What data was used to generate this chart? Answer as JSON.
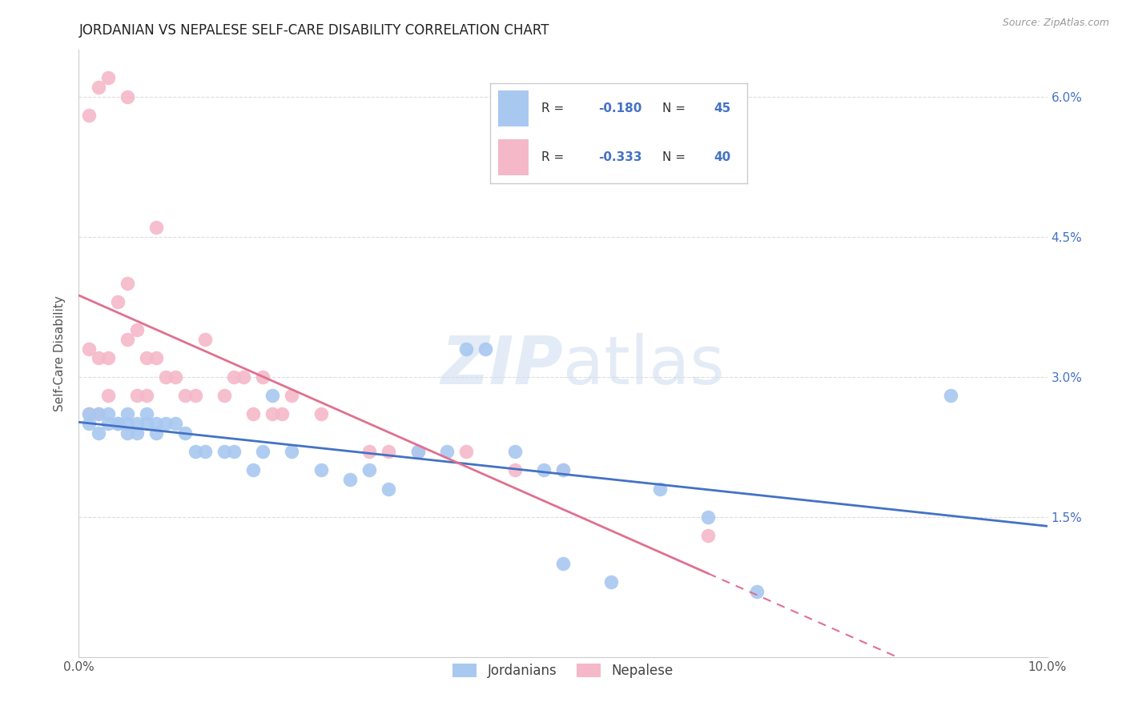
{
  "title": "JORDANIAN VS NEPALESE SELF-CARE DISABILITY CORRELATION CHART",
  "source": "Source: ZipAtlas.com",
  "ylabel": "Self-Care Disability",
  "xlim": [
    0.0,
    0.1
  ],
  "ylim": [
    0.0,
    0.065
  ],
  "blue_R": -0.18,
  "blue_N": 45,
  "pink_R": -0.333,
  "pink_N": 40,
  "blue_color": "#a8c8f0",
  "pink_color": "#f5b8c8",
  "blue_line_color": "#4472c4",
  "pink_line_color": "#e07090",
  "grid_color": "#dddddd",
  "legend_jordanians": "Jordanians",
  "legend_nepalese": "Nepalese",
  "blue_scatter_x": [
    0.001,
    0.001,
    0.002,
    0.002,
    0.003,
    0.003,
    0.004,
    0.004,
    0.005,
    0.005,
    0.005,
    0.006,
    0.006,
    0.007,
    0.007,
    0.008,
    0.008,
    0.009,
    0.01,
    0.011,
    0.012,
    0.013,
    0.015,
    0.016,
    0.018,
    0.019,
    0.02,
    0.022,
    0.025,
    0.028,
    0.03,
    0.032,
    0.035,
    0.038,
    0.04,
    0.042,
    0.045,
    0.048,
    0.05,
    0.05,
    0.055,
    0.06,
    0.065,
    0.07,
    0.09
  ],
  "blue_scatter_y": [
    0.026,
    0.025,
    0.026,
    0.024,
    0.025,
    0.026,
    0.025,
    0.025,
    0.025,
    0.026,
    0.024,
    0.025,
    0.024,
    0.025,
    0.026,
    0.024,
    0.025,
    0.025,
    0.025,
    0.024,
    0.022,
    0.022,
    0.022,
    0.022,
    0.02,
    0.022,
    0.028,
    0.022,
    0.02,
    0.019,
    0.02,
    0.018,
    0.022,
    0.022,
    0.033,
    0.033,
    0.022,
    0.02,
    0.02,
    0.01,
    0.008,
    0.018,
    0.015,
    0.007,
    0.028
  ],
  "pink_scatter_x": [
    0.001,
    0.001,
    0.002,
    0.002,
    0.003,
    0.003,
    0.004,
    0.005,
    0.005,
    0.006,
    0.006,
    0.007,
    0.007,
    0.008,
    0.009,
    0.01,
    0.011,
    0.012,
    0.013,
    0.015,
    0.016,
    0.017,
    0.018,
    0.019,
    0.02,
    0.021,
    0.022,
    0.025,
    0.03,
    0.032,
    0.035,
    0.04,
    0.045,
    0.05,
    0.065,
    0.001,
    0.002,
    0.003,
    0.005,
    0.008
  ],
  "pink_scatter_y": [
    0.033,
    0.026,
    0.032,
    0.026,
    0.032,
    0.028,
    0.038,
    0.04,
    0.034,
    0.035,
    0.028,
    0.032,
    0.028,
    0.032,
    0.03,
    0.03,
    0.028,
    0.028,
    0.034,
    0.028,
    0.03,
    0.03,
    0.026,
    0.03,
    0.026,
    0.026,
    0.028,
    0.026,
    0.022,
    0.022,
    0.022,
    0.022,
    0.02,
    0.02,
    0.013,
    0.058,
    0.061,
    0.062,
    0.06,
    0.046
  ]
}
